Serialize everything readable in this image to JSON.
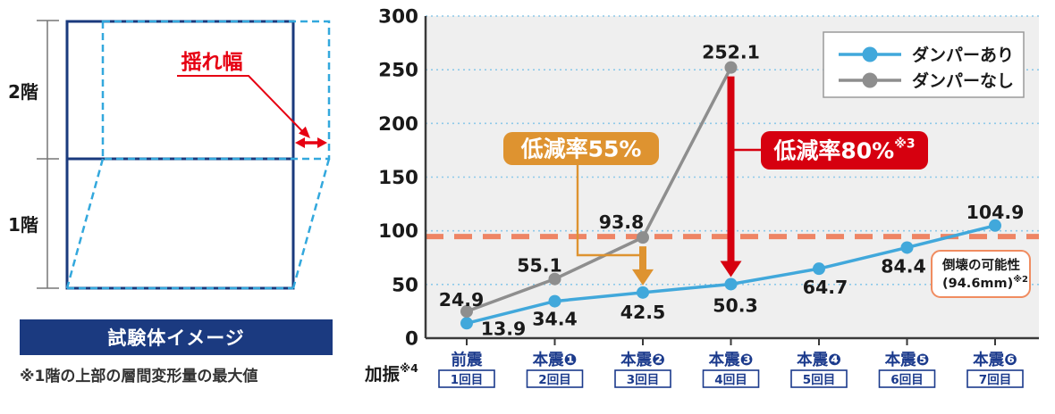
{
  "left_panel": {
    "floor2_label": "2階",
    "floor1_label": "1階",
    "sway_label": "揺れ幅",
    "banner_label": "試験体イメージ",
    "footnote": "※1階の上部の層間変形量の最大値",
    "colors": {
      "frame_navy": "#1a3a7d",
      "deformed_dashed_cyan": "#33a8dd",
      "accent_red": "#e60012",
      "banner_navy": "#1b3a80"
    }
  },
  "chart_data": {
    "type": "line",
    "categories": [
      "前震",
      "本震❶",
      "本震❷",
      "本震❸",
      "本震❹",
      "本震❺",
      "本震❻"
    ],
    "trial_labels": [
      "1回目",
      "2回目",
      "3回目",
      "4回目",
      "5回目",
      "6回目",
      "7回目"
    ],
    "xlabel": "加振",
    "xlabel_sup": "※4",
    "ylim": [
      0,
      300
    ],
    "yticks": [
      0,
      50,
      100,
      150,
      200,
      250,
      300
    ],
    "grid": "horizontal-dotted",
    "grid_color": "#8ec9e9",
    "plot_background": "#efefef",
    "legend_position": "top-right",
    "series": [
      {
        "name": "ダンパーあり",
        "color": "#41a8db",
        "values": [
          13.9,
          34.4,
          42.5,
          50.3,
          64.7,
          84.4,
          104.9
        ]
      },
      {
        "name": "ダンパーなし",
        "color": "#8e8e8e",
        "values": [
          24.9,
          55.1,
          93.8,
          252.1
        ]
      }
    ],
    "threshold_line": {
      "value": 94.6,
      "color": "#ee8565",
      "style": "dashed",
      "label_line1": "倒壊の可能性",
      "label_line2": "(94.6mm)",
      "label_sup": "※2"
    },
    "annotations": [
      {
        "label": "低減率55%",
        "sup": "",
        "color": "#de9330",
        "from": {
          "series": "ダンパーなし",
          "category": "本震❷",
          "value": 93.8
        },
        "to": {
          "series": "ダンパーあり",
          "category": "本震❷",
          "value": 42.5
        }
      },
      {
        "label": "低減率80%",
        "sup": "※3",
        "color": "#d6000f",
        "from": {
          "series": "ダンパーなし",
          "category": "本震❸",
          "value": 252.1
        },
        "to": {
          "series": "ダンパーあり",
          "category": "本震❸",
          "value": 50.3
        }
      }
    ]
  }
}
